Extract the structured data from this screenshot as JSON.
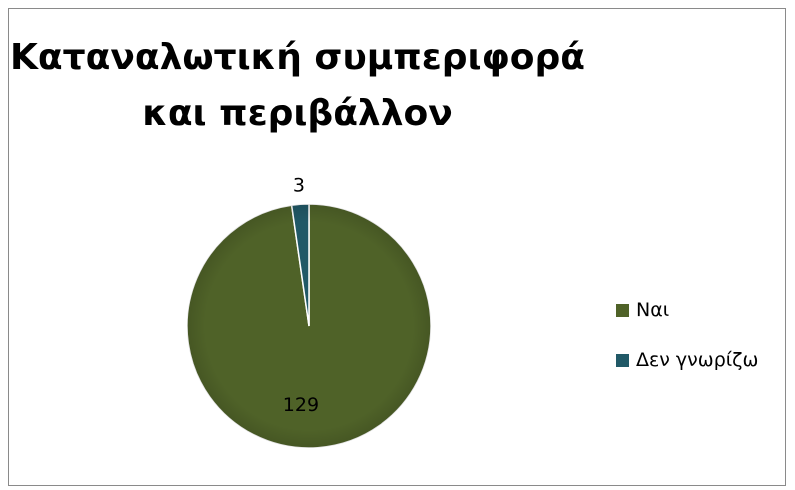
{
  "chart_data": {
    "type": "pie",
    "title_lines": [
      "Καταναλωτική συμπεριφορά",
      "και περιβάλλον"
    ],
    "categories": [
      "Ναι",
      "Δεν γνωρίζω"
    ],
    "values": [
      129,
      3
    ],
    "data_labels": [
      "129",
      "3"
    ],
    "colors": [
      "#4F6228",
      "#215967"
    ],
    "legend_position": "right"
  }
}
